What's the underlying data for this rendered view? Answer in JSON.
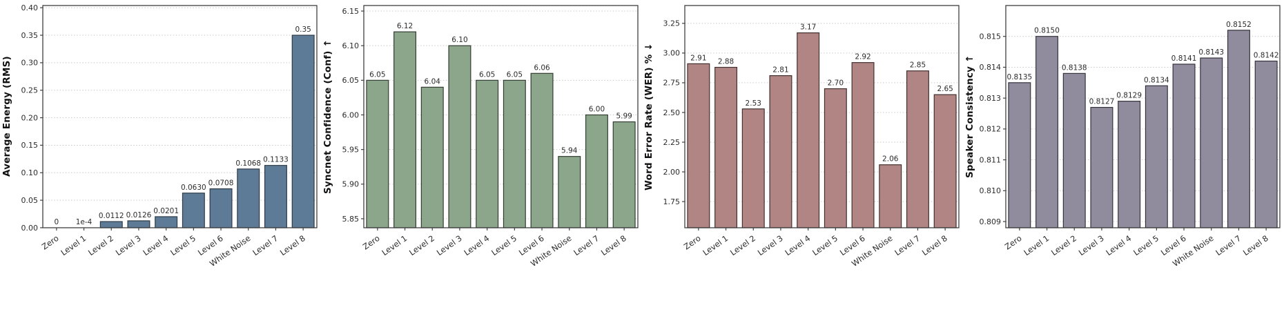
{
  "chart_data": [
    {
      "type": "bar",
      "ylabel": "Average Energy (RMS)",
      "categories": [
        "Zero",
        "Level 1",
        "Level 2",
        "Level 3",
        "Level 4",
        "Level 5",
        "Level 6",
        "White Noise",
        "Level 7",
        "Level 8"
      ],
      "values": [
        0,
        0.0001,
        0.0112,
        0.0126,
        0.0201,
        0.063,
        0.0708,
        0.1068,
        0.1133,
        0.35
      ],
      "bar_labels": [
        "0",
        "1e-4",
        "0.0112",
        "0.0126",
        "0.0201",
        "0.0630",
        "0.0708",
        "0.1068",
        "0.1133",
        "0.35"
      ],
      "ylim": [
        0,
        0.404
      ],
      "yticks": [
        0.0,
        0.05,
        0.1,
        0.15,
        0.2,
        0.25,
        0.3,
        0.35,
        0.4
      ],
      "ytick_labels": [
        "0.00",
        "0.05",
        "0.10",
        "0.15",
        "0.20",
        "0.25",
        "0.30",
        "0.35",
        "0.40"
      ],
      "grid": true,
      "bar_color": "#5d7b96",
      "edge_color": "#2e3a45"
    },
    {
      "type": "bar",
      "ylabel": "Syncnet Confidence (Conf) ↑",
      "categories": [
        "Zero",
        "Level 1",
        "Level 2",
        "Level 3",
        "Level 4",
        "Level 5",
        "Level 6",
        "White Noise",
        "Level 7",
        "Level 8"
      ],
      "values": [
        6.05,
        6.12,
        6.04,
        6.1,
        6.05,
        6.05,
        6.06,
        5.94,
        6.0,
        5.99
      ],
      "bar_labels": [
        "6.05",
        "6.12",
        "6.04",
        "6.10",
        "6.05",
        "6.05",
        "6.06",
        "5.94",
        "6.00",
        "5.99"
      ],
      "ylim": [
        5.837,
        6.158
      ],
      "yticks": [
        5.85,
        5.9,
        5.95,
        6.0,
        6.05,
        6.1,
        6.15
      ],
      "ytick_labels": [
        "5.85",
        "5.90",
        "5.95",
        "6.00",
        "6.05",
        "6.10",
        "6.15"
      ],
      "grid": true,
      "bar_color": "#8ba68b",
      "edge_color": "#333b33"
    },
    {
      "type": "bar",
      "ylabel": "Word Error Rate (WER) % ↓",
      "categories": [
        "Zero",
        "Level 1",
        "Level 2",
        "Level 3",
        "Level 4",
        "Level 5",
        "Level 6",
        "White Noise",
        "Level 7",
        "Level 8"
      ],
      "values": [
        2.91,
        2.88,
        2.53,
        2.81,
        3.17,
        2.7,
        2.92,
        2.06,
        2.85,
        2.65
      ],
      "bar_labels": [
        "2.91",
        "2.88",
        "2.53",
        "2.81",
        "3.17",
        "2.70",
        "2.92",
        "2.06",
        "2.85",
        "2.65"
      ],
      "ylim": [
        1.53,
        3.4
      ],
      "yticks": [
        1.75,
        2.0,
        2.25,
        2.5,
        2.75,
        3.0,
        3.25
      ],
      "ytick_labels": [
        "1.75",
        "2.00",
        "2.25",
        "2.50",
        "2.75",
        "3.00",
        "3.25"
      ],
      "grid": true,
      "bar_color": "#b08584",
      "edge_color": "#42302f"
    },
    {
      "type": "bar",
      "ylabel": "Speaker Consistency ↑",
      "categories": [
        "Zero",
        "Level 1",
        "Level 2",
        "Level 3",
        "Level 4",
        "Level 5",
        "Level 6",
        "White Noise",
        "Level 7",
        "Level 8"
      ],
      "values": [
        0.8135,
        0.815,
        0.8138,
        0.8127,
        0.8129,
        0.8134,
        0.8141,
        0.8143,
        0.8152,
        0.8142
      ],
      "bar_labels": [
        "0.8135",
        "0.8150",
        "0.8138",
        "0.8127",
        "0.8129",
        "0.8134",
        "0.8141",
        "0.8143",
        "0.8152",
        "0.8142"
      ],
      "ylim": [
        0.8088,
        0.816
      ],
      "yticks": [
        0.809,
        0.81,
        0.811,
        0.812,
        0.813,
        0.814,
        0.815
      ],
      "ytick_labels": [
        "0.809",
        "0.810",
        "0.811",
        "0.812",
        "0.813",
        "0.814",
        "0.815"
      ],
      "grid": true,
      "bar_color": "#918c9d",
      "edge_color": "#35323c"
    }
  ],
  "style": {
    "grid_color": "#c8c8c8",
    "spine_color": "#3f3f3f",
    "text_color": "#2b2b2b",
    "background": "#ffffff"
  }
}
